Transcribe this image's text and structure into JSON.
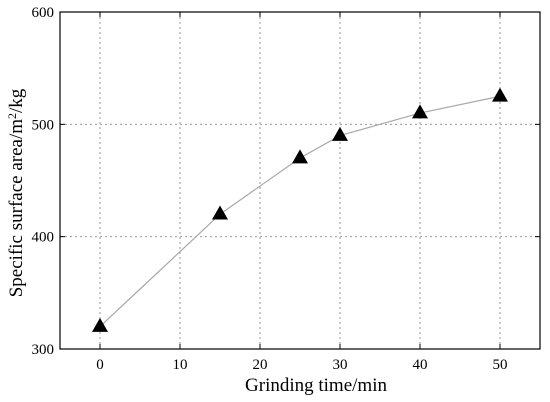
{
  "chart_data": {
    "type": "line",
    "xlabel": "Grinding time/min",
    "ylabel_main": "Specific surface area/m",
    "ylabel_sup": "2",
    "ylabel_tail": "/kg",
    "xlim": [
      -5,
      55
    ],
    "ylim": [
      300,
      600
    ],
    "xticks": [
      0,
      10,
      20,
      30,
      40,
      50
    ],
    "yticks": [
      300,
      400,
      500,
      600
    ],
    "grid": true,
    "marker": "triangle",
    "series": [
      {
        "x": [
          0,
          15,
          25,
          30,
          40,
          50
        ],
        "y": [
          320,
          420,
          470,
          490,
          510,
          525
        ]
      }
    ]
  }
}
